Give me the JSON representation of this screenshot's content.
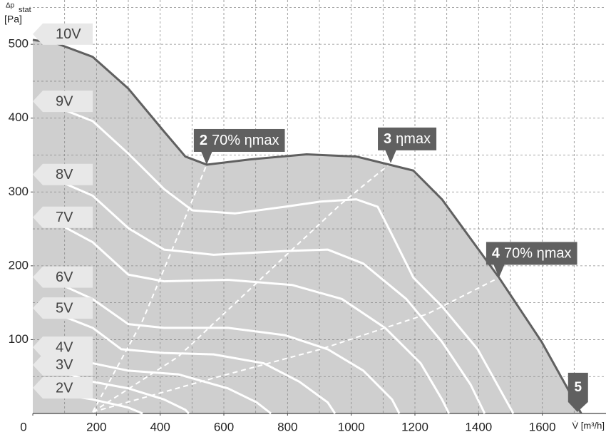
{
  "chart_data": {
    "type": "line",
    "y_label": {
      "symbol": "Δp",
      "sub": "stat",
      "unit": "[Pa]"
    },
    "x_label": "V̇ [m³/h]",
    "xlim": [
      0,
      1800
    ],
    "ylim": [
      0,
      560
    ],
    "xticks": [
      0,
      200,
      400,
      600,
      800,
      1000,
      1200,
      1400,
      1600
    ],
    "yticks": [
      100,
      200,
      300,
      400,
      500
    ],
    "x_grid": [
      100,
      200,
      300,
      400,
      500,
      600,
      700,
      800,
      900,
      1000,
      1100,
      1200,
      1300,
      1400,
      1500,
      1600,
      1700
    ],
    "y_grid": [
      50,
      100,
      150,
      200,
      250,
      300,
      350,
      400,
      450,
      500,
      550
    ],
    "area_color": "#cfcfcf",
    "series": [
      {
        "name": "10V",
        "color": "#606060",
        "x": [
          0,
          76,
          188,
          300,
          412,
          479,
          546,
          680,
          860,
          1016,
          1195,
          1285,
          1464,
          1598,
          1710,
          1722
        ],
        "values": [
          506,
          501,
          483,
          440,
          382,
          348,
          337,
          344,
          351,
          348,
          329,
          290,
          184,
          97,
          10,
          0
        ]
      },
      {
        "name": "9V",
        "color": "#ffffff",
        "x": [
          76,
          188,
          300,
          412,
          501,
          636,
          792,
          904,
          1016,
          1083,
          1128,
          1195,
          1285,
          1397,
          1509
        ],
        "values": [
          415,
          396,
          352,
          304,
          275,
          271,
          280,
          287,
          290,
          280,
          242,
          184,
          145,
          87,
          0
        ]
      },
      {
        "name": "8V",
        "color": "#ffffff",
        "x": [
          76,
          188,
          300,
          412,
          568,
          792,
          926,
          1038,
          1173,
          1285,
          1375,
          1419
        ],
        "values": [
          316,
          295,
          251,
          222,
          215,
          220,
          222,
          203,
          155,
          97,
          39,
          0
        ]
      },
      {
        "name": "7V",
        "color": "#ffffff",
        "x": [
          76,
          188,
          300,
          412,
          613,
          815,
          971,
          1106,
          1218,
          1285,
          1307
        ],
        "values": [
          258,
          232,
          188,
          179,
          181,
          174,
          155,
          116,
          68,
          19,
          0
        ]
      },
      {
        "name": "6V",
        "color": "#ffffff",
        "x": [
          76,
          188,
          300,
          412,
          613,
          792,
          926,
          1038,
          1128,
          1151
        ],
        "values": [
          177,
          155,
          121,
          116,
          116,
          106,
          87,
          58,
          19,
          0
        ]
      },
      {
        "name": "5V",
        "color": "#ffffff",
        "x": [
          76,
          188,
          278,
          412,
          568,
          725,
          837,
          926,
          949
        ],
        "values": [
          135,
          116,
          87,
          82,
          80,
          68,
          43,
          15,
          0
        ]
      },
      {
        "name": "4V",
        "color": "#ffffff",
        "x": [
          76,
          188,
          300,
          457,
          613,
          703,
          748
        ],
        "values": [
          82,
          68,
          58,
          53,
          34,
          15,
          0
        ]
      },
      {
        "name": "3V",
        "color": "#ffffff",
        "x": [
          76,
          188,
          300,
          412,
          479,
          490
        ],
        "values": [
          58,
          43,
          34,
          19,
          5,
          0
        ]
      },
      {
        "name": "2V",
        "color": "#ffffff",
        "x": [
          76,
          188,
          300,
          345
        ],
        "values": [
          27,
          19,
          8,
          0
        ]
      }
    ],
    "efficiency_lines": [
      {
        "x": [
          188,
          345,
          457,
          546
        ],
        "values": [
          2,
          126,
          242,
          337
        ]
      },
      {
        "x": [
          188,
          457,
          792,
          971,
          1124
        ],
        "values": [
          2,
          77,
          213,
          285,
          339
        ]
      },
      {
        "x": [
          188,
          568,
          904,
          1240,
          1464
        ],
        "values": [
          2,
          48,
          87,
          135,
          184
        ]
      }
    ],
    "annotations": [
      {
        "number": "2",
        "text": "70% ηmax",
        "x": 546,
        "y": 337
      },
      {
        "number": "3",
        "text": "ηmax",
        "x": 1124,
        "y": 339
      },
      {
        "number": "4",
        "text": "70% ηmax",
        "x": 1464,
        "y": 184
      },
      {
        "number": "5",
        "x": 1710,
        "y": 2
      }
    ]
  }
}
